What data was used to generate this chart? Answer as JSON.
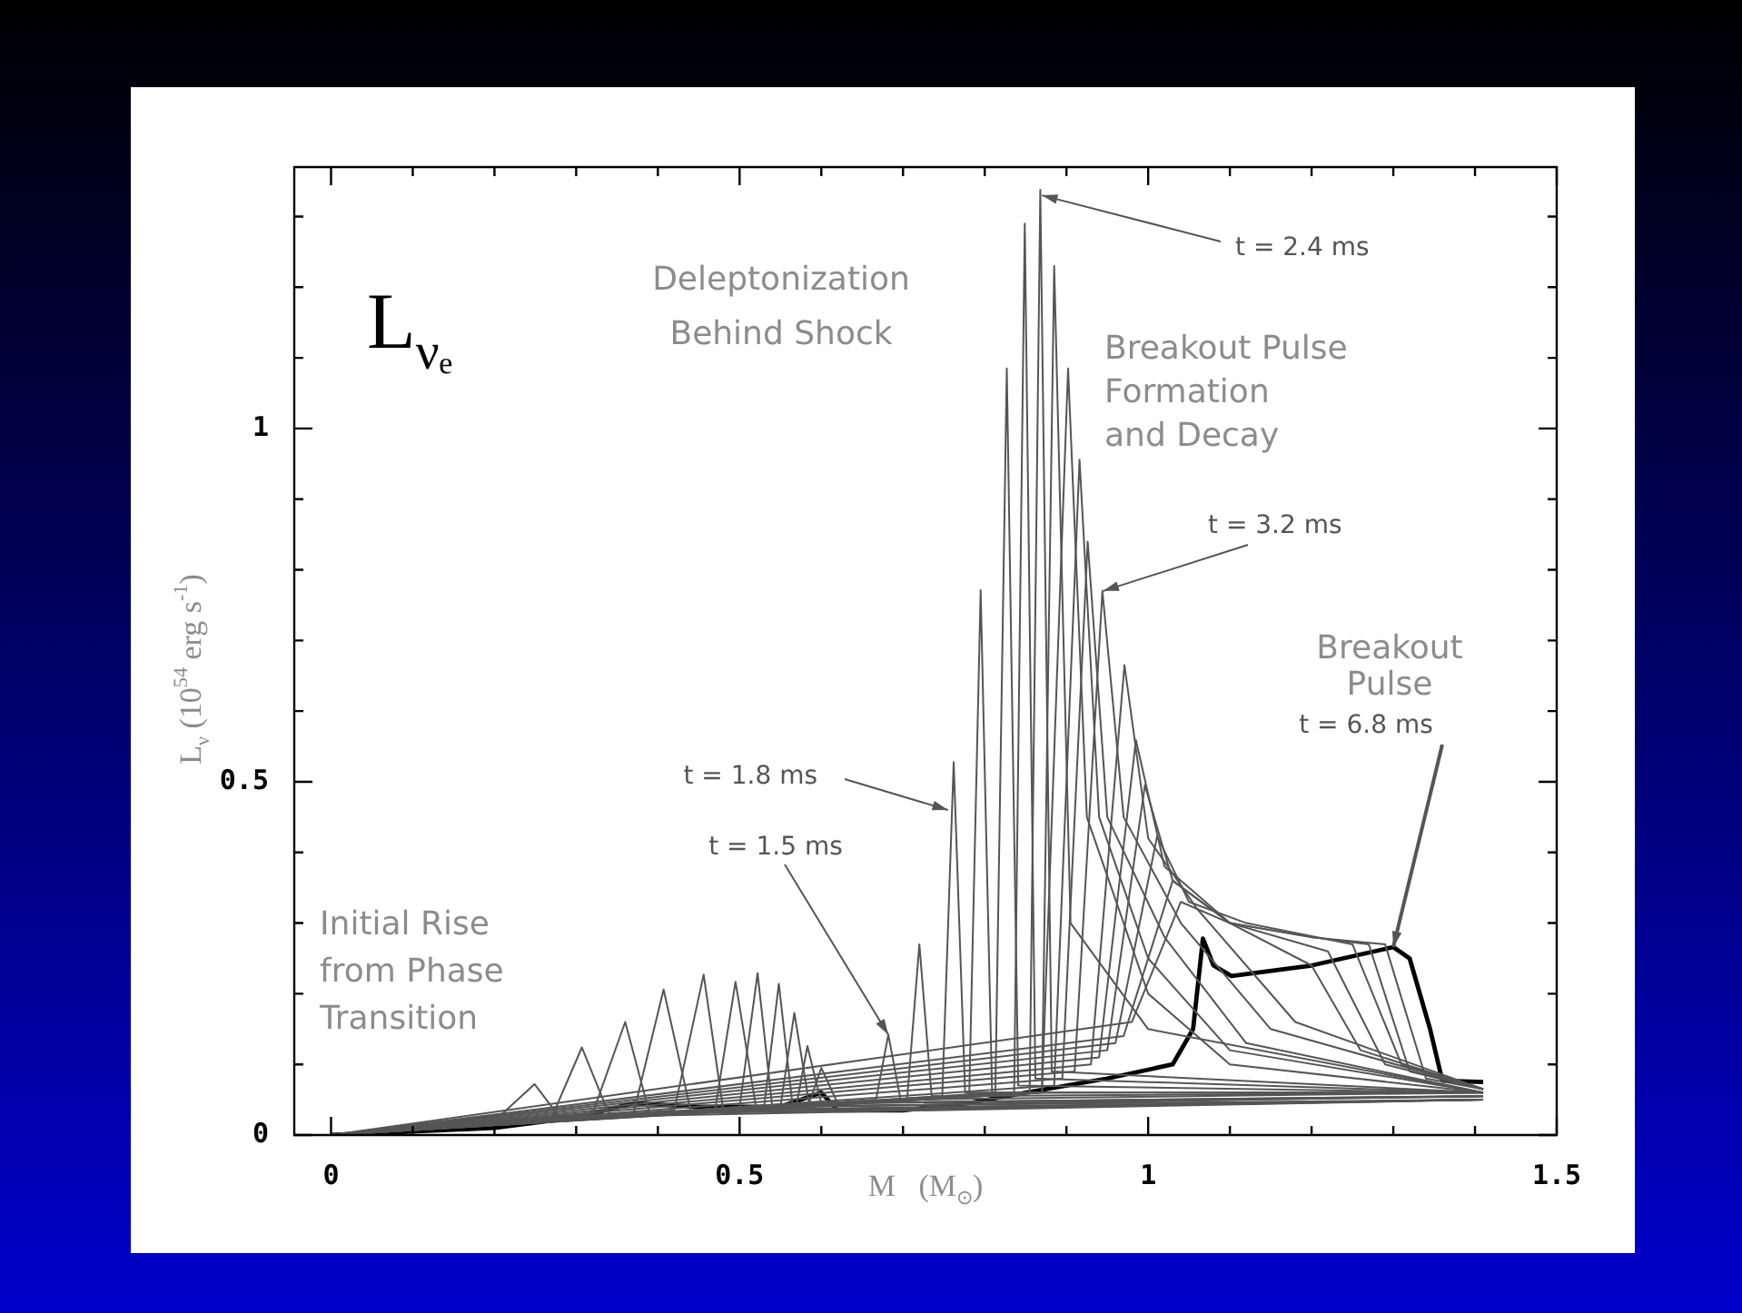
{
  "chart_data": {
    "type": "line",
    "xlabel": "M   (M$_{⊙}$)",
    "ylabel": "L$_{ν}$ (10$^{54}$ erg s$^{-1}$)",
    "xlim": [
      -0.045,
      1.5
    ],
    "ylim": [
      0,
      1.37
    ],
    "xticks": [
      0,
      {
        "value": 0.1,
        "label": null
      },
      {
        "value": 0.2,
        "label": null
      },
      {
        "value": 0.3,
        "label": null
      },
      {
        "value": 0.4,
        "label": null
      },
      0.5,
      {
        "value": 0.6,
        "label": null
      },
      {
        "value": 0.7,
        "label": null
      },
      {
        "value": 0.8,
        "label": null
      },
      {
        "value": 0.9,
        "label": null
      },
      1,
      {
        "value": 1.1,
        "label": null
      },
      {
        "value": 1.2,
        "label": null
      },
      {
        "value": 1.3,
        "label": null
      },
      {
        "value": 1.4,
        "label": null
      },
      1.5
    ],
    "yticks": [
      0,
      {
        "value": 0.1,
        "label": null
      },
      {
        "value": 0.2,
        "label": null
      },
      {
        "value": 0.3,
        "label": null
      },
      {
        "value": 0.4,
        "label": null
      },
      0.5,
      {
        "value": 0.6,
        "label": null
      },
      {
        "value": 0.7,
        "label": null
      },
      {
        "value": 0.8,
        "label": null
      },
      {
        "value": 0.9,
        "label": null
      },
      1,
      {
        "value": 1.1,
        "label": null
      },
      {
        "value": 1.2,
        "label": null
      },
      {
        "value": 1.3,
        "label": null
      }
    ],
    "grid": false,
    "legend": false,
    "marker": "none",
    "line_style": "solid",
    "series": [
      {
        "color": "#555555",
        "x": [
          0,
          0.2,
          0.249,
          0.28,
          1.41
        ],
        "values": [
          0,
          0.02,
          0.072,
          0.025,
          0.05
        ]
      },
      {
        "color": "#555555",
        "x": [
          0,
          0.27,
          0.307,
          0.34,
          1.41
        ],
        "values": [
          0,
          0.025,
          0.124,
          0.03,
          0.05
        ]
      },
      {
        "color": "#555555",
        "x": [
          0,
          0.32,
          0.36,
          0.39,
          1.41
        ],
        "values": [
          0,
          0.03,
          0.16,
          0.03,
          0.05
        ]
      },
      {
        "color": "#555555",
        "x": [
          0,
          0.37,
          0.407,
          0.44,
          1.41
        ],
        "values": [
          0,
          0.03,
          0.206,
          0.035,
          0.05
        ]
      },
      {
        "color": "#555555",
        "x": [
          0,
          0.42,
          0.456,
          0.48,
          1.41
        ],
        "values": [
          0,
          0.035,
          0.227,
          0.035,
          0.05
        ]
      },
      {
        "color": "#555555",
        "x": [
          0,
          0.47,
          0.495,
          0.52,
          1.41
        ],
        "values": [
          0,
          0.035,
          0.217,
          0.04,
          0.05
        ]
      },
      {
        "color": "#555555",
        "x": [
          0,
          0.5,
          0.522,
          0.54,
          1.41
        ],
        "values": [
          0,
          0.04,
          0.229,
          0.04,
          0.055
        ]
      },
      {
        "color": "#555555",
        "x": [
          0,
          0.53,
          0.548,
          0.565,
          1.41
        ],
        "values": [
          0,
          0.04,
          0.214,
          0.04,
          0.055
        ]
      },
      {
        "color": "#555555",
        "x": [
          0,
          0.55,
          0.567,
          0.585,
          1.41
        ],
        "values": [
          0,
          0.04,
          0.173,
          0.045,
          0.055
        ]
      },
      {
        "color": "#555555",
        "x": [
          0,
          0.57,
          0.583,
          0.6,
          1.41
        ],
        "values": [
          0,
          0.045,
          0.126,
          0.045,
          0.055
        ]
      },
      {
        "color": "#555555",
        "x": [
          0,
          0.585,
          0.6,
          0.62,
          1.41
        ],
        "values": [
          0,
          0.045,
          0.095,
          0.045,
          0.055
        ]
      },
      {
        "color": "#555555",
        "x": [
          0,
          0.667,
          0.682,
          0.697,
          1.41
        ],
        "values": [
          0,
          0.05,
          0.142,
          0.05,
          0.06
        ]
      },
      {
        "color": "#555555",
        "x": [
          0,
          0.705,
          0.72,
          0.735,
          1.41
        ],
        "values": [
          0,
          0.05,
          0.27,
          0.055,
          0.06
        ]
      },
      {
        "color": "#555555",
        "x": [
          0,
          0.748,
          0.762,
          0.776,
          1.41
        ],
        "values": [
          0,
          0.055,
          0.528,
          0.06,
          0.06
        ]
      },
      {
        "color": "#555555",
        "x": [
          0,
          0.781,
          0.795,
          0.809,
          1.41
        ],
        "values": [
          0,
          0.055,
          0.771,
          0.06,
          0.06
        ]
      },
      {
        "color": "#555555",
        "x": [
          0,
          0.813,
          0.827,
          0.841,
          1.41
        ],
        "values": [
          0,
          0.06,
          1.085,
          0.07,
          0.06
        ]
      },
      {
        "color": "#555555",
        "x": [
          0,
          0.836,
          0.849,
          0.862,
          1.41
        ],
        "values": [
          0,
          0.06,
          1.29,
          0.08,
          0.06
        ]
      },
      {
        "color": "#555555",
        "x": [
          0,
          0.855,
          0.868,
          0.882,
          1.41
        ],
        "values": [
          0,
          0.06,
          1.338,
          0.09,
          0.06
        ]
      },
      {
        "color": "#555555",
        "x": [
          0,
          0.87,
          0.885,
          0.905,
          1.0,
          1.41
        ],
        "values": [
          0,
          0.06,
          1.23,
          0.3,
          0.15,
          0.06
        ]
      },
      {
        "color": "#555555",
        "x": [
          0,
          0.87,
          0.902,
          0.925,
          1.0,
          1.1,
          1.41
        ],
        "values": [
          0,
          0.06,
          1.085,
          0.45,
          0.2,
          0.1,
          0.06
        ]
      },
      {
        "color": "#555555",
        "x": [
          0,
          0.885,
          0.916,
          0.94,
          1.0,
          1.1,
          1.41
        ],
        "values": [
          0,
          0.07,
          0.956,
          0.45,
          0.25,
          0.12,
          0.06
        ]
      },
      {
        "color": "#555555",
        "x": [
          0,
          0.895,
          0.926,
          0.95,
          1.02,
          1.12,
          1.41
        ],
        "values": [
          0,
          0.08,
          0.84,
          0.45,
          0.28,
          0.13,
          0.06
        ]
      },
      {
        "color": "#555555",
        "x": [
          0,
          0.91,
          0.944,
          0.97,
          1.04,
          1.15,
          1.41
        ],
        "values": [
          0,
          0.09,
          0.77,
          0.45,
          0.3,
          0.15,
          0.065
        ]
      },
      {
        "color": "#555555",
        "x": [
          0,
          0.93,
          0.971,
          1.0,
          1.06,
          1.18,
          1.41
        ],
        "values": [
          0,
          0.1,
          0.665,
          0.42,
          0.32,
          0.16,
          0.065
        ]
      },
      {
        "color": "#555555",
        "x": [
          0,
          0.94,
          0.985,
          1.02,
          1.1,
          1.2,
          1.26,
          1.41
        ],
        "values": [
          0,
          0.11,
          0.559,
          0.38,
          0.3,
          0.24,
          0.12,
          0.065
        ]
      },
      {
        "color": "#555555",
        "x": [
          0,
          0.95,
          0.996,
          1.03,
          1.1,
          1.22,
          1.29,
          1.41
        ],
        "values": [
          0,
          0.12,
          0.495,
          0.36,
          0.3,
          0.26,
          0.1,
          0.065
        ]
      },
      {
        "color": "#555555",
        "x": [
          0,
          0.96,
          1.011,
          1.05,
          1.12,
          1.25,
          1.31,
          1.41
        ],
        "values": [
          0,
          0.13,
          0.423,
          0.33,
          0.3,
          0.27,
          0.1,
          0.065
        ]
      },
      {
        "color": "#555555",
        "x": [
          0,
          0.97,
          1.03,
          1.1,
          1.2,
          1.27,
          1.32,
          1.41
        ],
        "values": [
          0,
          0.14,
          0.36,
          0.3,
          0.28,
          0.27,
          0.09,
          0.065
        ]
      },
      {
        "color": "#555555",
        "x": [
          0,
          0.98,
          1.04,
          1.1,
          1.2,
          1.29,
          1.34,
          1.41
        ],
        "values": [
          0,
          0.16,
          0.33,
          0.3,
          0.28,
          0.27,
          0.08,
          0.065
        ]
      },
      {
        "color": "#000000",
        "x": [
          0,
          0.2,
          0.3,
          0.37,
          0.45,
          0.55,
          0.6,
          0.62,
          0.7,
          0.78,
          0.85,
          0.95,
          1.03,
          1.055,
          1.067,
          1.08,
          1.102,
          1.2,
          1.3,
          1.32,
          1.345,
          1.36,
          1.41
        ],
        "values": [
          0,
          0.01,
          0.025,
          0.045,
          0.04,
          0.04,
          0.06,
          0.035,
          0.035,
          0.045,
          0.06,
          0.08,
          0.1,
          0.15,
          0.278,
          0.24,
          0.225,
          0.24,
          0.266,
          0.25,
          0.15,
          0.077,
          0.075
        ]
      }
    ],
    "annotations": [
      "L$_{νₑ}$",
      "Deleptonization\nBehind Shock",
      "Breakout Pulse\nFormation\nand Decay",
      "Breakout\nPulse",
      "Initial Rise\nfrom Phase\nTransition",
      {
        "text": "t = 1.8 ms",
        "x": 0.755,
        "y": 0.46
      },
      {
        "text": "t = 1.5 ms",
        "x": 0.682,
        "y": 0.142
      },
      {
        "text": "t = 2.4 ms",
        "x": 0.87,
        "y": 1.33
      },
      {
        "text": "t = 3.2 ms",
        "x": 0.945,
        "y": 0.77
      },
      {
        "text": "t = 6.8 ms",
        "x": 1.3,
        "y": 0.266
      }
    ]
  }
}
